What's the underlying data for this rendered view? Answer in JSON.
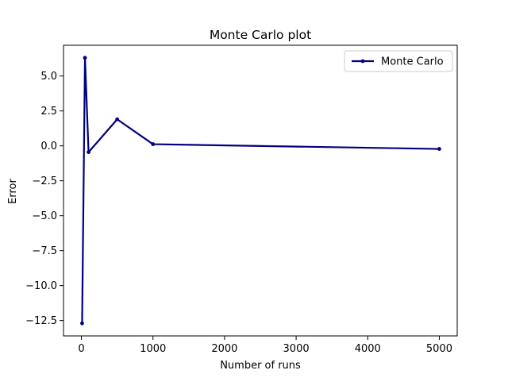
{
  "chart_data": {
    "type": "line",
    "title": "Monte Carlo plot",
    "xlabel": "Number of runs",
    "ylabel": "Error",
    "xlim": [
      -250,
      5250
    ],
    "ylim": [
      -13.6,
      7.2
    ],
    "x_ticks": [
      0,
      1000,
      2000,
      3000,
      4000,
      5000
    ],
    "y_ticks": [
      -12.5,
      -10.0,
      -7.5,
      -5.0,
      -2.5,
      0.0,
      2.5,
      5.0
    ],
    "x_tick_labels": [
      "0",
      "1000",
      "2000",
      "3000",
      "4000",
      "5000"
    ],
    "y_tick_labels": [
      "−12.5",
      "−10.0",
      "−7.5",
      "−5.0",
      "−2.5",
      "0.0",
      "2.5",
      "5.0"
    ],
    "grid": false,
    "legend": {
      "position": "top-right",
      "entries": [
        "Monte Carlo"
      ]
    },
    "series": [
      {
        "name": "Monte Carlo",
        "color": "#000080",
        "marker": "circle",
        "points": [
          {
            "x": 10,
            "y": -12.7
          },
          {
            "x": 50,
            "y": 6.3
          },
          {
            "x": 100,
            "y": -0.45
          },
          {
            "x": 500,
            "y": 1.9
          },
          {
            "x": 1000,
            "y": 0.12
          },
          {
            "x": 5000,
            "y": -0.22
          }
        ]
      }
    ]
  }
}
